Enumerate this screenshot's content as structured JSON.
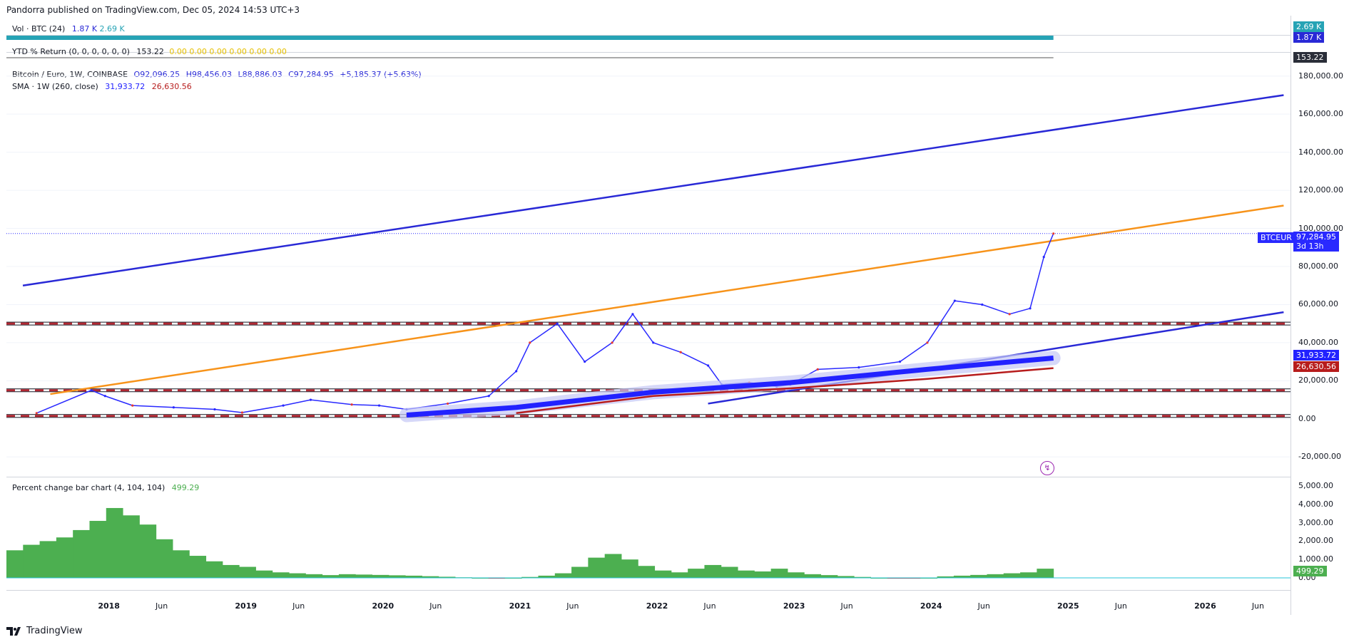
{
  "header": "Pandorra published on TradingView.com, Dec 05, 2024 14:53 UTC+3",
  "footer": {
    "brand": "TradingView"
  },
  "colors": {
    "blue": "#2929d6",
    "orange": "#f7931a",
    "red": "#b22833",
    "green": "#4caf50",
    "teal": "#26a3b5",
    "sma": "#2222ff",
    "sma_red": "#b71c1c"
  },
  "vol_pane": {
    "title": "Vol · BTC (24)",
    "v1": "1.87 K",
    "v2": "2.69 K",
    "tag1": "2.69 K",
    "tag2": "1.87 K"
  },
  "ytd_pane": {
    "title": "YTD % Return (0, 0, 0, 0, 0, 0)",
    "value": "153.22",
    "zeros": "0.00  0.00  0.00  0.00  0.00  0.00",
    "tag": "153.22"
  },
  "main_pane": {
    "symbol": "Bitcoin / Euro, 1W, COINBASE",
    "open": "O92,096.25",
    "high": "H98,456.03",
    "low": "L88,886.03",
    "close": "C97,284.95",
    "change": "+5,185.37 (+5.63%)",
    "sma_label": "SMA · 1W (260, close)",
    "sma_v1": "31,933.72",
    "sma_v2": "26,630.56",
    "price_tag_symbol": "BTCEUR",
    "price_tag_value": "97,284.95",
    "price_tag_time": "3d 13h",
    "sma_tag1": "31,933.72",
    "sma_tag2": "26,630.56",
    "y_ticks": [
      "180,000.00",
      "160,000.00",
      "140,000.00",
      "120,000.00",
      "100,000.00",
      "80,000.00",
      "60,000.00",
      "40,000.00",
      "20,000.00",
      "0.00",
      "-20,000.00"
    ]
  },
  "pct_pane": {
    "title": "Percent change bar chart (4, 104, 104)",
    "value": "499.29",
    "y_ticks": [
      "5,000.00",
      "4,000.00",
      "3,000.00",
      "2,000.00",
      "1,000.00",
      "0.00"
    ],
    "tag": "499.29"
  },
  "x_ticks": [
    "2018",
    "Jun",
    "2019",
    "Jun",
    "2020",
    "Jun",
    "2021",
    "Jun",
    "2022",
    "Jun",
    "2023",
    "Jun",
    "2024",
    "Jun",
    "2025",
    "Jun",
    "2026",
    "Jun"
  ],
  "chart_data": {
    "type": "line",
    "title": "Bitcoin / Euro, 1W, COINBASE",
    "ylim": [
      -30000,
      190000
    ],
    "y_ticks": [
      180000,
      160000,
      140000,
      120000,
      100000,
      80000,
      60000,
      40000,
      20000,
      0,
      -20000
    ],
    "x_ticks": [
      "2018",
      "Jun",
      "2019",
      "Jun",
      "2020",
      "Jun",
      "2021",
      "Jun",
      "2022",
      "Jun",
      "2023",
      "Jun",
      "2024",
      "Jun",
      "2025",
      "Jun",
      "2026",
      "Jun"
    ],
    "series": [
      {
        "name": "BTCEUR",
        "x": [
          2017.5,
          2017.9,
          2018.0,
          2018.2,
          2018.5,
          2018.8,
          2019.0,
          2019.3,
          2019.5,
          2019.8,
          2020.0,
          2020.2,
          2020.5,
          2020.8,
          2021.0,
          2021.1,
          2021.3,
          2021.5,
          2021.7,
          2021.85,
          2022.0,
          2022.2,
          2022.4,
          2022.5,
          2022.7,
          2022.9,
          2023.0,
          2023.2,
          2023.5,
          2023.8,
          2024.0,
          2024.2,
          2024.4,
          2024.6,
          2024.75,
          2024.85,
          2024.92
        ],
        "y": [
          3000,
          15000,
          12000,
          7000,
          6000,
          5000,
          3300,
          7000,
          10000,
          7500,
          7000,
          5000,
          8000,
          12000,
          25000,
          40000,
          50000,
          30000,
          40000,
          55000,
          40000,
          35000,
          28000,
          18000,
          19000,
          17000,
          18000,
          26000,
          27000,
          30000,
          40000,
          62000,
          60000,
          55000,
          58000,
          85000,
          97284.95
        ]
      },
      {
        "name": "SMA 260",
        "x": [
          2020.2,
          2021.0,
          2022.0,
          2023.0,
          2024.0,
          2024.92
        ],
        "y": [
          2000,
          6000,
          14000,
          19000,
          26000,
          31933.72
        ]
      },
      {
        "name": "SMA red",
        "x": [
          2021.0,
          2022.0,
          2023.0,
          2024.0,
          2024.92
        ],
        "y": [
          3000,
          12000,
          16000,
          21000,
          26630.56
        ]
      }
    ],
    "lines": [
      {
        "color": "blue",
        "from": [
          2017.4,
          70000
        ],
        "to": [
          2026.6,
          170000
        ]
      },
      {
        "color": "orange",
        "from": [
          2017.6,
          13000
        ],
        "to": [
          2026.6,
          112000
        ]
      },
      {
        "color": "blue",
        "from": [
          2022.4,
          8000
        ],
        "to": [
          2026.6,
          56000
        ]
      }
    ],
    "hlines": [
      50000,
      15000,
      1500
    ],
    "pct_change": {
      "type": "bar",
      "ylim": [
        0,
        5000
      ],
      "y_ticks": [
        5000,
        4000,
        3000,
        2000,
        1000,
        0
      ],
      "values": [
        1500,
        1800,
        2000,
        2200,
        2600,
        3100,
        3800,
        3400,
        2900,
        2100,
        1500,
        1200,
        900,
        700,
        600,
        400,
        300,
        250,
        200,
        150,
        200,
        180,
        160,
        140,
        120,
        90,
        60,
        30,
        0,
        -30,
        0,
        50,
        120,
        250,
        600,
        1100,
        1300,
        1000,
        650,
        400,
        300,
        500,
        700,
        600,
        400,
        350,
        500,
        300,
        200,
        150,
        100,
        50,
        0,
        -20,
        -30,
        0,
        80,
        120,
        160,
        200,
        250,
        300,
        500
      ]
    }
  }
}
